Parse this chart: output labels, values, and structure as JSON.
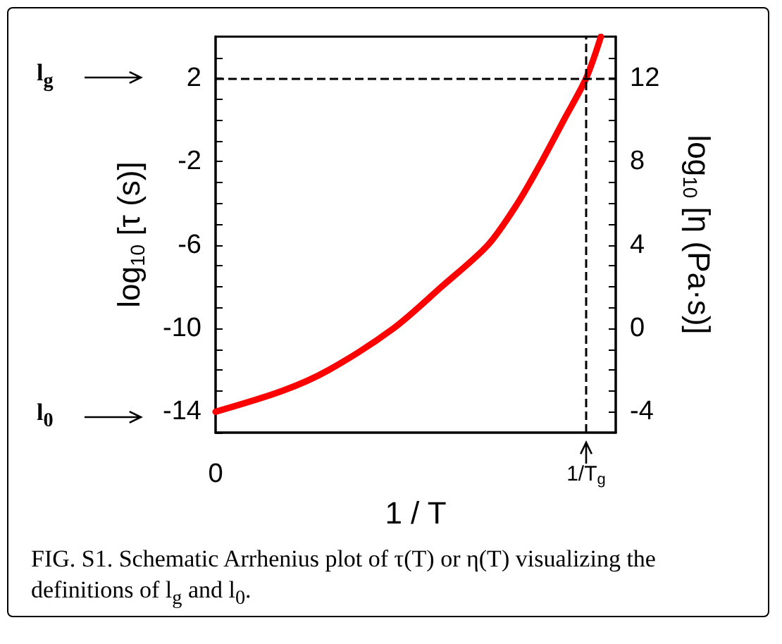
{
  "chart_data": {
    "type": "line",
    "xlabel": "1 / T",
    "ylabel": "log$_{10}$ [τ (s)]",
    "y2label": "log$_{10}$ [η (Pa·s)]",
    "x": [
      0,
      0.18,
      0.305,
      0.48,
      0.61,
      0.735,
      0.815,
      0.88,
      0.94,
      1,
      1.04
    ],
    "series": [
      {
        "color": "#ff0000",
        "values": [
          -14,
          -13,
          -12,
          -10,
          -8,
          -6,
          -4,
          -2,
          0,
          2,
          4
        ]
      }
    ],
    "xlim": [
      0,
      1.08
    ],
    "xticks": [
      0,
      {
        "value": 1,
        "label": "1/T$_{g}$"
      }
    ],
    "ylim": [
      -15,
      4
    ],
    "yticks": [
      {
        "value": -15,
        "label": null
      },
      -14,
      {
        "value": -13,
        "label": null
      },
      {
        "value": -12,
        "label": null
      },
      {
        "value": -11,
        "label": null
      },
      -10,
      {
        "value": -9,
        "label": null
      },
      {
        "value": -8,
        "label": null
      },
      {
        "value": -7,
        "label": null
      },
      -6,
      {
        "value": -5,
        "label": null
      },
      {
        "value": -4,
        "label": null
      },
      {
        "value": -3,
        "label": null
      },
      -2,
      {
        "value": -1,
        "label": null
      },
      {
        "value": 0,
        "label": null
      },
      {
        "value": 1,
        "label": null
      },
      2,
      {
        "value": 3,
        "label": null
      }
    ],
    "y2lim": [
      -5,
      14
    ],
    "y2ticks": [
      -4,
      {
        "value": -3,
        "label": null
      },
      {
        "value": -2,
        "label": null
      },
      {
        "value": -1,
        "label": null
      },
      0,
      {
        "value": 1,
        "label": null
      },
      {
        "value": 2,
        "label": null
      },
      {
        "value": 3,
        "label": null
      },
      4,
      {
        "value": 5,
        "label": null
      },
      {
        "value": 6,
        "label": null
      },
      {
        "value": 7,
        "label": null
      },
      8,
      {
        "value": 9,
        "label": null
      },
      {
        "value": 10,
        "label": null
      },
      {
        "value": 11,
        "label": null
      },
      12,
      {
        "value": 13,
        "label": null
      }
    ],
    "ref_lines": [
      {
        "axis": "y",
        "value": 2,
        "line_style": "dashed",
        "color": "#000000"
      },
      {
        "axis": "x",
        "value": 1,
        "line_style": "dashed",
        "color": "#000000"
      }
    ],
    "annotations": [
      "l$_{g}$",
      "l$_{0}$",
      "FIG. S1. Schematic Arrhenius plot of τ(T) or η(T) visualizing the definitions of l$_{g}$ and l$_{0}$."
    ],
    "grid": false,
    "marker": "none",
    "line_style": "solid"
  }
}
